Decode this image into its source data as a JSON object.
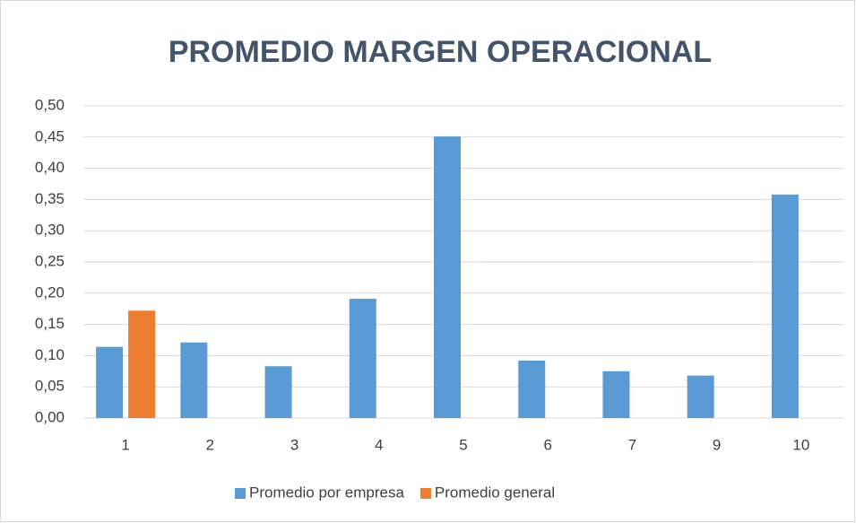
{
  "chart_data": {
    "type": "bar",
    "title": "PROMEDIO MARGEN OPERACIONAL",
    "categories": [
      "1",
      "2",
      "3",
      "4",
      "5",
      "6",
      "7",
      "9",
      "10"
    ],
    "series": [
      {
        "name": "Promedio por empresa",
        "color": "#5b9bd5",
        "values": [
          0.114,
          0.121,
          0.083,
          0.191,
          0.451,
          0.092,
          0.075,
          0.068,
          0.358
        ]
      },
      {
        "name": "Promedio general",
        "color": "#ed7d31",
        "values": [
          0.172,
          null,
          null,
          null,
          null,
          null,
          null,
          null,
          null
        ]
      }
    ],
    "ylim": [
      0,
      0.5
    ],
    "yticks": [
      {
        "value": 0,
        "label": "0,00"
      },
      {
        "value": 0.05,
        "label": "0,05"
      },
      {
        "value": 0.1,
        "label": "0,10"
      },
      {
        "value": 0.15,
        "label": "0,15"
      },
      {
        "value": 0.2,
        "label": "0,20"
      },
      {
        "value": 0.25,
        "label": "0,25"
      },
      {
        "value": 0.3,
        "label": "0,30"
      },
      {
        "value": 0.35,
        "label": "0,35"
      },
      {
        "value": 0.4,
        "label": "0,40"
      },
      {
        "value": 0.45,
        "label": "0,45"
      },
      {
        "value": 0.5,
        "label": "0,50"
      }
    ],
    "grid": true,
    "legend": "bottom"
  }
}
